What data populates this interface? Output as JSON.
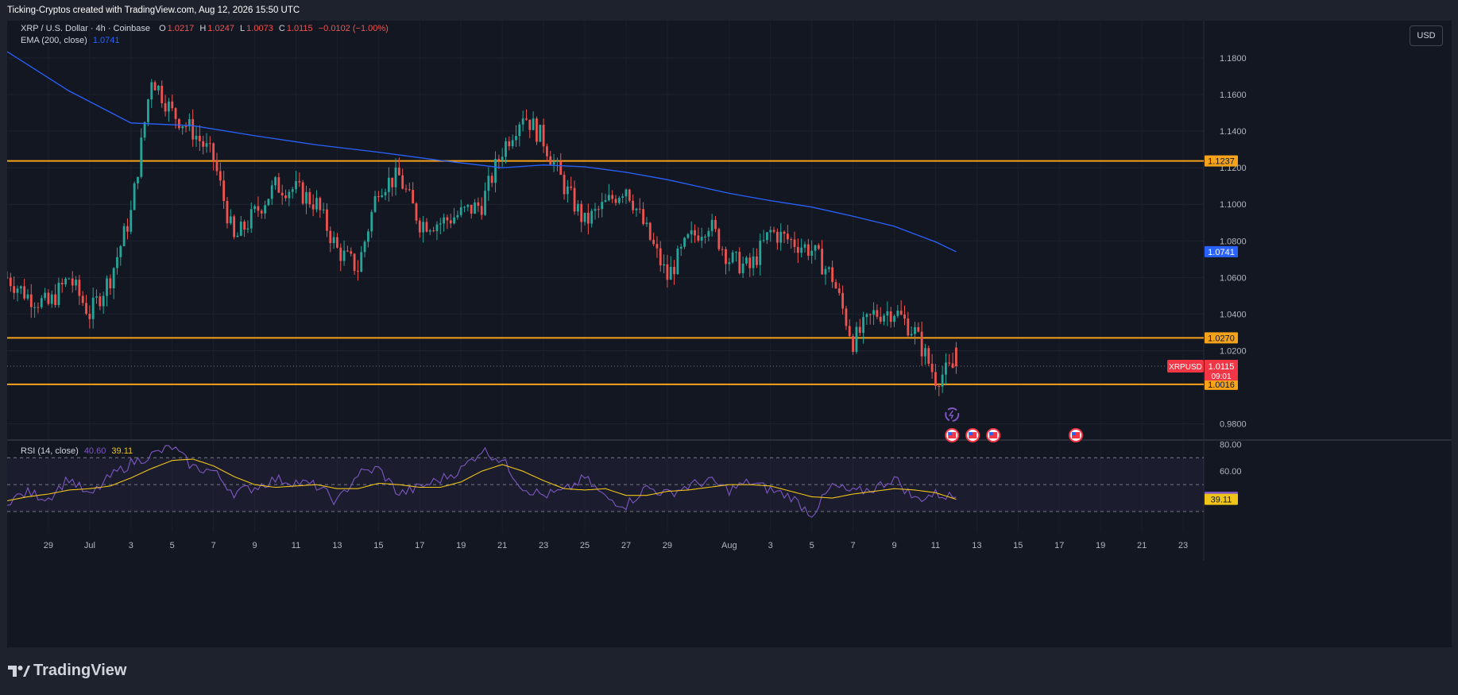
{
  "header": {
    "caption": "Ticking-Cryptos created with TradingView.com, Aug 12, 2026 15:50 UTC"
  },
  "legend": {
    "symbol": "XRP / U.S. Dollar · 4h · Coinbase",
    "o_label": "O",
    "o": "1.0217",
    "h_label": "H",
    "h": "1.0247",
    "l_label": "L",
    "l": "1.0073",
    "c_label": "C",
    "c": "1.0115",
    "change": "−0.0102 (−1.00%)",
    "ema_label": "EMA (200, close)",
    "ema_value": "1.0741",
    "rsi_label": "RSI (14, close)",
    "rsi_value": "40.60",
    "rsi_ma_value": "39.11"
  },
  "currency_button": "USD",
  "footer": {
    "brand": "TradingView"
  },
  "colors": {
    "bull": "#26a69a",
    "bear": "#ef5350",
    "ema": "#2962ff",
    "level": "#f7a21b",
    "rsi": "#7e57c2",
    "rsi_ma": "#f0c419",
    "price_tag": "#f23645"
  },
  "chart_data": [
    {
      "type": "candlestick",
      "title": "XRP / U.S. Dollar · 4h · Coinbase",
      "ylabel": "USD",
      "ylim": [
        0.972,
        1.19
      ],
      "y_ticks": [
        "1.1800",
        "1.1600",
        "1.1400",
        "1.1200",
        "1.1000",
        "1.0800",
        "1.0600",
        "1.0400",
        "1.0200",
        "0.9800"
      ],
      "x_ticks": [
        "29",
        "Jul",
        "3",
        "5",
        "7",
        "9",
        "11",
        "13",
        "15",
        "17",
        "19",
        "21",
        "23",
        "25",
        "27",
        "29",
        "Aug",
        "3",
        "5",
        "7",
        "9",
        "11",
        "13",
        "15",
        "17",
        "19",
        "21",
        "23"
      ],
      "x_range": [
        "Jun 27",
        "Aug 24"
      ],
      "last_bar": {
        "open": 1.0217,
        "high": 1.0247,
        "low": 1.0073,
        "close": 1.0115,
        "countdown": "09:01",
        "symbol_tag": "XRPUSD"
      },
      "horizontal_levels": [
        1.1237,
        1.027,
        1.0016
      ],
      "level_labels": [
        "1.1237",
        "1.0270",
        "1.0016"
      ],
      "price_line": 1.0115,
      "price_label": "1.0115",
      "ema_200_label": "1.0741",
      "ema_200": [
        {
          "x": "Jun 27",
          "y": 1.1835
        },
        {
          "x": "Jun 30",
          "y": 1.162
        },
        {
          "x": "Jul 3",
          "y": 1.1445
        },
        {
          "x": "Jul 6",
          "y": 1.143
        },
        {
          "x": "Jul 9",
          "y": 1.1375
        },
        {
          "x": "Jul 12",
          "y": 1.1325
        },
        {
          "x": "Jul 15",
          "y": 1.1285
        },
        {
          "x": "Jul 18",
          "y": 1.124
        },
        {
          "x": "Jul 21",
          "y": 1.12
        },
        {
          "x": "Jul 23",
          "y": 1.1215
        },
        {
          "x": "Jul 25",
          "y": 1.1205
        },
        {
          "x": "Jul 27",
          "y": 1.1175
        },
        {
          "x": "Jul 29",
          "y": 1.1135
        },
        {
          "x": "Aug 1",
          "y": 1.106
        },
        {
          "x": "Aug 3",
          "y": 1.102
        },
        {
          "x": "Aug 5",
          "y": 1.0985
        },
        {
          "x": "Aug 7",
          "y": 1.0935
        },
        {
          "x": "Aug 9",
          "y": 1.088
        },
        {
          "x": "Aug 11",
          "y": 1.0795
        },
        {
          "x": "Aug 12",
          "y": 1.0741
        }
      ],
      "close_path": [
        {
          "x": "Jun 27",
          "y": 1.06
        },
        {
          "x": "Jun 28",
          "y": 1.05
        },
        {
          "x": "Jun 29",
          "y": 1.045
        },
        {
          "x": "Jun 30",
          "y": 1.06
        },
        {
          "x": "Jul 1",
          "y": 1.04
        },
        {
          "x": "Jul 2",
          "y": 1.06
        },
        {
          "x": "Jul 3",
          "y": 1.095
        },
        {
          "x": "Jul 4",
          "y": 1.17
        },
        {
          "x": "Jul 5",
          "y": 1.15
        },
        {
          "x": "Jul 6",
          "y": 1.14
        },
        {
          "x": "Jul 7",
          "y": 1.125
        },
        {
          "x": "Jul 8",
          "y": 1.08
        },
        {
          "x": "Jul 9",
          "y": 1.095
        },
        {
          "x": "Jul 10",
          "y": 1.11
        },
        {
          "x": "Jul 11",
          "y": 1.108
        },
        {
          "x": "Jul 12",
          "y": 1.1
        },
        {
          "x": "Jul 13",
          "y": 1.075
        },
        {
          "x": "Jul 14",
          "y": 1.065
        },
        {
          "x": "Jul 15",
          "y": 1.11
        },
        {
          "x": "Jul 16",
          "y": 1.115
        },
        {
          "x": "Jul 17",
          "y": 1.09
        },
        {
          "x": "Jul 18",
          "y": 1.09
        },
        {
          "x": "Jul 19",
          "y": 1.095
        },
        {
          "x": "Jul 20",
          "y": 1.1
        },
        {
          "x": "Jul 21",
          "y": 1.13
        },
        {
          "x": "Jul 22",
          "y": 1.15
        },
        {
          "x": "Jul 23",
          "y": 1.135
        },
        {
          "x": "Jul 24",
          "y": 1.11
        },
        {
          "x": "Jul 25",
          "y": 1.09
        },
        {
          "x": "Jul 26",
          "y": 1.1
        },
        {
          "x": "Jul 27",
          "y": 1.11
        },
        {
          "x": "Jul 28",
          "y": 1.085
        },
        {
          "x": "Jul 29",
          "y": 1.06
        },
        {
          "x": "Jul 30",
          "y": 1.08
        },
        {
          "x": "Jul 31",
          "y": 1.09
        },
        {
          "x": "Aug 1",
          "y": 1.07
        },
        {
          "x": "Aug 2",
          "y": 1.065
        },
        {
          "x": "Aug 3",
          "y": 1.085
        },
        {
          "x": "Aug 4",
          "y": 1.08
        },
        {
          "x": "Aug 5",
          "y": 1.075
        },
        {
          "x": "Aug 6",
          "y": 1.06
        },
        {
          "x": "Aug 7",
          "y": 1.025
        },
        {
          "x": "Aug 8",
          "y": 1.04
        },
        {
          "x": "Aug 9",
          "y": 1.042
        },
        {
          "x": "Aug 10",
          "y": 1.03
        },
        {
          "x": "Aug 11",
          "y": 1.005
        },
        {
          "x": "Aug 12",
          "y": 1.0115
        }
      ],
      "notes": "4h candles; green = up, red = down"
    },
    {
      "type": "line",
      "title": "RSI (14, close)",
      "ylim": [
        17,
        82
      ],
      "y_ticks": [
        "80.00",
        "60.00"
      ],
      "bands": [
        70,
        50,
        30
      ],
      "series": [
        {
          "name": "RSI (14, close)",
          "last": 40.6,
          "values": [
            38,
            44,
            40,
            55,
            41,
            56,
            66,
            72,
            78,
            63,
            60,
            44,
            48,
            54,
            52,
            49,
            37,
            58,
            62,
            43,
            48,
            54,
            61,
            76,
            68,
            48,
            42,
            45,
            55,
            40,
            35,
            48,
            43,
            49,
            53,
            46,
            52,
            46,
            41,
            28,
            49,
            44,
            47,
            55,
            39,
            43,
            40.6
          ]
        },
        {
          "name": "RSI MA",
          "last": 39.11,
          "values": [
            38,
            41,
            43,
            46,
            47,
            49,
            55,
            62,
            68,
            69,
            64,
            56,
            50,
            48,
            49,
            50,
            47,
            47,
            51,
            50,
            48,
            48,
            52,
            60,
            65,
            60,
            53,
            47,
            46,
            47,
            42,
            42,
            45,
            46,
            48,
            50,
            50,
            49,
            45,
            41,
            40,
            43,
            45,
            47,
            46,
            44,
            39.11
          ]
        }
      ]
    }
  ]
}
